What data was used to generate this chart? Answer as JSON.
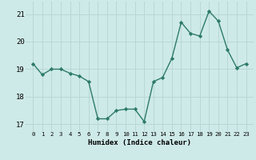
{
  "x": [
    0,
    1,
    2,
    3,
    4,
    5,
    6,
    7,
    8,
    9,
    10,
    11,
    12,
    13,
    14,
    15,
    16,
    17,
    18,
    19,
    20,
    21,
    22,
    23
  ],
  "y": [
    19.2,
    18.8,
    19.0,
    19.0,
    18.85,
    18.75,
    18.55,
    17.2,
    17.2,
    17.5,
    17.55,
    17.55,
    17.1,
    18.55,
    18.7,
    19.4,
    20.7,
    20.3,
    20.2,
    21.1,
    20.75,
    19.7,
    19.05,
    19.2
  ],
  "line_color": "#2d7a6b",
  "marker": "D",
  "marker_size": 2.2,
  "bg_color": "#ceeae8",
  "grid_color": "#b8d8d5",
  "xlabel": "Humidex (Indice chaleur)",
  "ylim": [
    16.75,
    21.45
  ],
  "yticks": [
    17,
    18,
    19,
    20,
    21
  ],
  "xticks": [
    0,
    1,
    2,
    3,
    4,
    5,
    6,
    7,
    8,
    9,
    10,
    11,
    12,
    13,
    14,
    15,
    16,
    17,
    18,
    19,
    20,
    21,
    22,
    23
  ],
  "line_width": 1.0
}
